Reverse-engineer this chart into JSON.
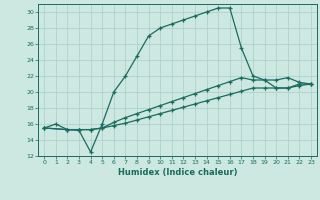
{
  "title": "",
  "xlabel": "Humidex (Indice chaleur)",
  "xlim": [
    -0.5,
    23.5
  ],
  "ylim": [
    12,
    31
  ],
  "xticks": [
    0,
    1,
    2,
    3,
    4,
    5,
    6,
    7,
    8,
    9,
    10,
    11,
    12,
    13,
    14,
    15,
    16,
    17,
    18,
    19,
    20,
    21,
    22,
    23
  ],
  "yticks": [
    12,
    14,
    16,
    18,
    20,
    22,
    24,
    26,
    28,
    30
  ],
  "bg_color": "#cce8e0",
  "grid_color": "#aacccc",
  "line_color": "#1a6b60",
  "line1_x": [
    0,
    1,
    2,
    3,
    4,
    5,
    6,
    7,
    8,
    9,
    10,
    11,
    12,
    13,
    14,
    15,
    16,
    17,
    18,
    19,
    20,
    21,
    22,
    23
  ],
  "line1_y": [
    15.5,
    16.0,
    15.3,
    15.2,
    12.5,
    16.0,
    20.0,
    22.0,
    24.5,
    27.0,
    28.0,
    28.5,
    29.0,
    29.5,
    30.0,
    30.5,
    30.5,
    25.5,
    22.0,
    21.5,
    20.5,
    20.5,
    21.0,
    21.0
  ],
  "line2_x": [
    0,
    2,
    3,
    4,
    5,
    6,
    7,
    8,
    9,
    10,
    11,
    12,
    13,
    14,
    15,
    16,
    17,
    18,
    19,
    20,
    21,
    22,
    23
  ],
  "line2_y": [
    15.5,
    15.3,
    15.3,
    15.3,
    15.5,
    16.2,
    16.8,
    17.3,
    17.8,
    18.3,
    18.8,
    19.3,
    19.8,
    20.3,
    20.8,
    21.3,
    21.8,
    21.5,
    21.5,
    21.5,
    21.8,
    21.2,
    21.0
  ],
  "line3_x": [
    0,
    2,
    3,
    4,
    5,
    6,
    7,
    8,
    9,
    10,
    11,
    12,
    13,
    14,
    15,
    16,
    17,
    18,
    19,
    20,
    21,
    22,
    23
  ],
  "line3_y": [
    15.5,
    15.3,
    15.3,
    15.3,
    15.5,
    15.8,
    16.1,
    16.5,
    16.9,
    17.3,
    17.7,
    18.1,
    18.5,
    18.9,
    19.3,
    19.7,
    20.1,
    20.5,
    20.5,
    20.5,
    20.5,
    20.8,
    21.0
  ]
}
